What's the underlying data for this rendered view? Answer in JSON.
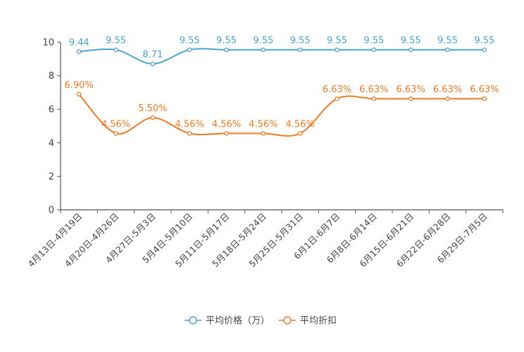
{
  "chart_data": {
    "type": "line",
    "categories": [
      "4月13日-4月19日",
      "4月20日-4月26日",
      "4月27日-5月3日",
      "5月4日-5月10日",
      "5月11日-5月17日",
      "5月18日-5月24日",
      "5月25日-5月31日",
      "6月1日-6月7日",
      "6月8日-6月14日",
      "6月15日-6月21日",
      "6月22日-6月28日",
      "6月29日-7月5日"
    ],
    "ylim": [
      0,
      10
    ],
    "yticks": [
      0,
      2,
      4,
      6,
      8,
      10
    ],
    "series": [
      {
        "name": "平均价格（万）",
        "color": "#4aa3d0",
        "values": [
          9.44,
          9.55,
          8.71,
          9.55,
          9.55,
          9.55,
          9.55,
          9.55,
          9.55,
          9.55,
          9.55,
          9.55
        ],
        "labels": [
          "9.44",
          "9.55",
          "8.71",
          "9.55",
          "9.55",
          "9.55",
          "9.55",
          "9.55",
          "9.55",
          "9.55",
          "9.55",
          "9.55"
        ]
      },
      {
        "name": "平均折扣",
        "color": "#f07a22",
        "values": [
          6.9,
          4.56,
          5.5,
          4.56,
          4.56,
          4.56,
          4.56,
          6.63,
          6.63,
          6.63,
          6.63,
          6.63
        ],
        "labels": [
          "6.90%",
          "4.56%",
          "5.50%",
          "4.56%",
          "4.56%",
          "4.56%",
          "4.56%",
          "6.63%",
          "6.63%",
          "6.63%",
          "6.63%",
          "6.63%"
        ]
      }
    ],
    "legend": "bottom-center"
  }
}
